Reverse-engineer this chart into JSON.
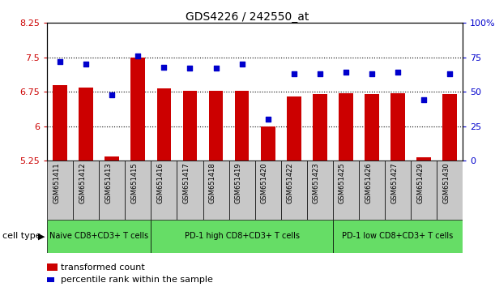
{
  "title": "GDS4226 / 242550_at",
  "samples": [
    "GSM651411",
    "GSM651412",
    "GSM651413",
    "GSM651415",
    "GSM651416",
    "GSM651417",
    "GSM651418",
    "GSM651419",
    "GSM651420",
    "GSM651422",
    "GSM651423",
    "GSM651425",
    "GSM651426",
    "GSM651427",
    "GSM651429",
    "GSM651430"
  ],
  "bar_values": [
    6.9,
    6.85,
    5.35,
    7.5,
    6.82,
    6.78,
    6.78,
    6.78,
    6.0,
    6.65,
    6.7,
    6.72,
    6.7,
    6.72,
    5.33,
    6.7
  ],
  "dot_values": [
    72,
    70,
    48,
    76,
    68,
    67,
    67,
    70,
    30,
    63,
    63,
    64,
    63,
    64,
    44,
    63
  ],
  "ylim": [
    5.25,
    8.25
  ],
  "yticks": [
    5.25,
    6.0,
    6.75,
    7.5,
    8.25
  ],
  "ytick_labels": [
    "5.25",
    "6",
    "6.75",
    "7.5",
    "8.25"
  ],
  "y2lim": [
    0,
    100
  ],
  "y2ticks": [
    0,
    25,
    50,
    75,
    100
  ],
  "y2tick_labels": [
    "0",
    "25",
    "50",
    "75",
    "100%"
  ],
  "bar_color": "#cc0000",
  "dot_color": "#0000cc",
  "groups": [
    {
      "label": "Naive CD8+CD3+ T cells",
      "start": 0,
      "end": 4,
      "color": "#66dd66"
    },
    {
      "label": "PD-1 high CD8+CD3+ T cells",
      "start": 4,
      "end": 11,
      "color": "#66dd66"
    },
    {
      "label": "PD-1 low CD8+CD3+ T cells",
      "start": 11,
      "end": 16,
      "color": "#66dd66"
    }
  ],
  "cell_type_label": "cell type",
  "legend_bar_label": "transformed count",
  "legend_dot_label": "percentile rank within the sample",
  "ytick_color": "#cc0000",
  "y2tick_color": "#0000cc",
  "bg_plot": "#ffffff",
  "bg_sample": "#c8c8c8"
}
